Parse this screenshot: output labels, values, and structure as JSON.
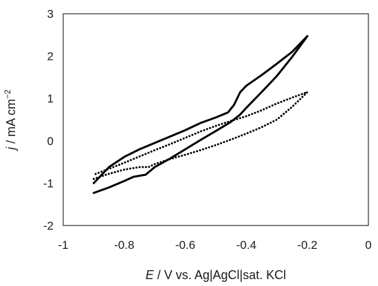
{
  "chart_data": {
    "type": "line",
    "xlabel_italic": "E",
    "xlabel_rest": " / V vs. Ag|AgCl|sat. KCl",
    "ylabel_italic": "j",
    "ylabel_rest": " / mA cm",
    "ylabel_sup": "−2",
    "xlim": [
      -1,
      0
    ],
    "ylim": [
      -2,
      3
    ],
    "xticks": [
      "-1",
      "-0.8",
      "-0.6",
      "-0.4",
      "-0.2",
      "0"
    ],
    "yticks": [
      "-2",
      "-1",
      "0",
      "1",
      "2",
      "3"
    ],
    "grid": false,
    "series": [
      {
        "style": "solid",
        "color": "#000000",
        "points": [
          [
            -0.9,
            -1.23
          ],
          [
            -0.85,
            -1.1
          ],
          [
            -0.8,
            -0.95
          ],
          [
            -0.77,
            -0.85
          ],
          [
            -0.73,
            -0.8
          ],
          [
            -0.7,
            -0.62
          ],
          [
            -0.65,
            -0.42
          ],
          [
            -0.6,
            -0.2
          ],
          [
            -0.55,
            0.02
          ],
          [
            -0.5,
            0.23
          ],
          [
            -0.45,
            0.45
          ],
          [
            -0.42,
            0.62
          ],
          [
            -0.4,
            0.78
          ],
          [
            -0.35,
            1.15
          ],
          [
            -0.3,
            1.53
          ],
          [
            -0.25,
            1.98
          ],
          [
            -0.2,
            2.47
          ],
          [
            -0.25,
            2.1
          ],
          [
            -0.3,
            1.82
          ],
          [
            -0.35,
            1.55
          ],
          [
            -0.4,
            1.3
          ],
          [
            -0.42,
            1.15
          ],
          [
            -0.44,
            0.85
          ],
          [
            -0.46,
            0.67
          ],
          [
            -0.5,
            0.55
          ],
          [
            -0.55,
            0.42
          ],
          [
            -0.6,
            0.25
          ],
          [
            -0.65,
            0.1
          ],
          [
            -0.7,
            -0.05
          ],
          [
            -0.75,
            -0.2
          ],
          [
            -0.8,
            -0.38
          ],
          [
            -0.85,
            -0.62
          ],
          [
            -0.9,
            -1.0
          ]
        ]
      },
      {
        "style": "dotted",
        "color": "#000000",
        "points": [
          [
            -0.9,
            -0.9
          ],
          [
            -0.85,
            -0.78
          ],
          [
            -0.8,
            -0.68
          ],
          [
            -0.75,
            -0.62
          ],
          [
            -0.72,
            -0.62
          ],
          [
            -0.7,
            -0.55
          ],
          [
            -0.65,
            -0.43
          ],
          [
            -0.6,
            -0.33
          ],
          [
            -0.55,
            -0.22
          ],
          [
            -0.5,
            -0.1
          ],
          [
            -0.45,
            0.03
          ],
          [
            -0.4,
            0.17
          ],
          [
            -0.35,
            0.32
          ],
          [
            -0.3,
            0.5
          ],
          [
            -0.25,
            0.8
          ],
          [
            -0.2,
            1.15
          ],
          [
            -0.25,
            1.02
          ],
          [
            -0.3,
            0.88
          ],
          [
            -0.35,
            0.72
          ],
          [
            -0.4,
            0.58
          ],
          [
            -0.45,
            0.47
          ],
          [
            -0.5,
            0.35
          ],
          [
            -0.55,
            0.22
          ],
          [
            -0.6,
            0.07
          ],
          [
            -0.65,
            -0.08
          ],
          [
            -0.7,
            -0.22
          ],
          [
            -0.75,
            -0.37
          ],
          [
            -0.8,
            -0.52
          ],
          [
            -0.85,
            -0.66
          ],
          [
            -0.9,
            -0.8
          ]
        ]
      }
    ]
  }
}
